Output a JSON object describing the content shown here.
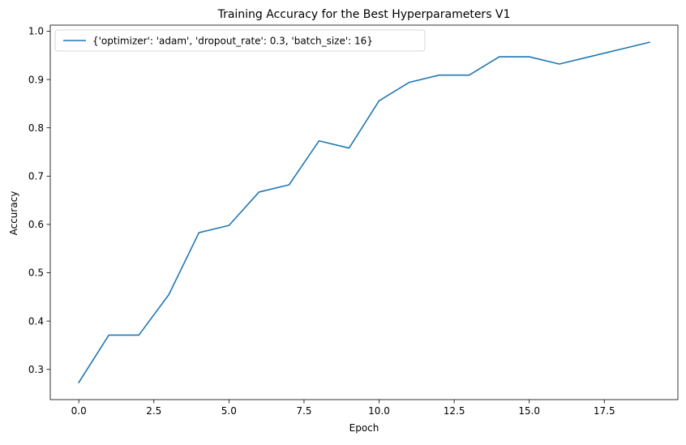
{
  "chart_data": {
    "type": "line",
    "title": "Training Accuracy for the Best Hyperparameters V1",
    "xlabel": "Epoch",
    "ylabel": "Accuracy",
    "xlim": [
      -0.95,
      19.95
    ],
    "ylim": [
      0.2375,
      1.0125
    ],
    "xticks": [
      0.0,
      2.5,
      5.0,
      7.5,
      10.0,
      12.5,
      15.0,
      17.5
    ],
    "xtick_labels": [
      "0.0",
      "2.5",
      "5.0",
      "7.5",
      "10.0",
      "12.5",
      "15.0",
      "17.5"
    ],
    "yticks": [
      0.3,
      0.4,
      0.5,
      0.6,
      0.7,
      0.8,
      0.9,
      1.0
    ],
    "ytick_labels": [
      "0.3",
      "0.4",
      "0.5",
      "0.6",
      "0.7",
      "0.8",
      "0.9",
      "1.0"
    ],
    "grid": false,
    "legend_position": "top-left",
    "series": [
      {
        "name": "{'optimizer': 'adam', 'dropout_rate': 0.3, 'batch_size': 16}",
        "color": "#1f77b4",
        "x": [
          0,
          1,
          2,
          3,
          4,
          5,
          6,
          7,
          8,
          9,
          10,
          11,
          12,
          13,
          14,
          15,
          16,
          17,
          18,
          19
        ],
        "values": [
          0.273,
          0.371,
          0.371,
          0.455,
          0.583,
          0.598,
          0.667,
          0.682,
          0.773,
          0.758,
          0.856,
          0.894,
          0.909,
          0.909,
          0.947,
          0.947,
          0.932,
          0.947,
          0.962,
          0.977
        ]
      }
    ]
  }
}
